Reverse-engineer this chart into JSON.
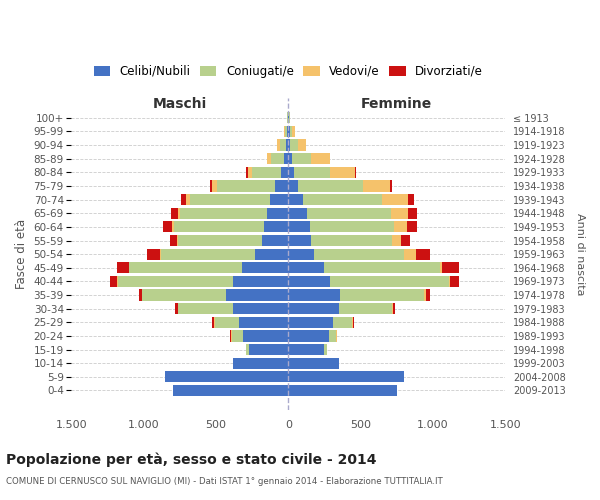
{
  "age_groups": [
    "0-4",
    "5-9",
    "10-14",
    "15-19",
    "20-24",
    "25-29",
    "30-34",
    "35-39",
    "40-44",
    "45-49",
    "50-54",
    "55-59",
    "60-64",
    "65-69",
    "70-74",
    "75-79",
    "80-84",
    "85-89",
    "90-94",
    "95-99",
    "100+"
  ],
  "birth_years": [
    "2009-2013",
    "2004-2008",
    "1999-2003",
    "1994-1998",
    "1989-1993",
    "1984-1988",
    "1979-1983",
    "1974-1978",
    "1969-1973",
    "1964-1968",
    "1959-1963",
    "1954-1958",
    "1949-1953",
    "1944-1948",
    "1939-1943",
    "1934-1938",
    "1929-1933",
    "1924-1928",
    "1919-1923",
    "1914-1918",
    "≤ 1913"
  ],
  "maschi": {
    "celibi": [
      800,
      850,
      380,
      270,
      310,
      340,
      380,
      430,
      380,
      320,
      230,
      180,
      170,
      150,
      130,
      90,
      50,
      30,
      15,
      10,
      5
    ],
    "coniugati": [
      0,
      0,
      0,
      20,
      80,
      170,
      380,
      580,
      800,
      780,
      650,
      580,
      620,
      600,
      550,
      400,
      200,
      90,
      40,
      15,
      5
    ],
    "vedovi": [
      0,
      0,
      0,
      0,
      5,
      5,
      5,
      5,
      5,
      5,
      5,
      10,
      15,
      10,
      30,
      40,
      30,
      30,
      20,
      5,
      2
    ],
    "divorziati": [
      0,
      0,
      0,
      0,
      5,
      10,
      20,
      20,
      50,
      80,
      90,
      50,
      60,
      50,
      30,
      15,
      10,
      0,
      0,
      0,
      0
    ]
  },
  "femmine": {
    "nubili": [
      750,
      800,
      350,
      250,
      280,
      310,
      350,
      360,
      290,
      250,
      180,
      160,
      150,
      130,
      100,
      70,
      40,
      25,
      15,
      10,
      5
    ],
    "coniugate": [
      0,
      0,
      0,
      15,
      50,
      130,
      370,
      580,
      820,
      800,
      620,
      560,
      580,
      580,
      550,
      450,
      250,
      130,
      50,
      15,
      5
    ],
    "vedove": [
      0,
      0,
      0,
      0,
      5,
      5,
      5,
      10,
      10,
      10,
      80,
      60,
      90,
      120,
      180,
      180,
      170,
      130,
      60,
      20,
      5
    ],
    "divorziate": [
      0,
      0,
      0,
      0,
      5,
      10,
      15,
      30,
      60,
      120,
      100,
      60,
      70,
      60,
      40,
      20,
      10,
      0,
      0,
      0,
      0
    ]
  },
  "colors": {
    "celibi_nubili": "#4472c4",
    "coniugati": "#b8d08d",
    "vedovi": "#f5c26b",
    "divorziati": "#cc1111"
  },
  "title": "Popolazione per età, sesso e stato civile - 2014",
  "subtitle": "COMUNE DI CERNUSCO SUL NAVIGLIO (MI) - Dati ISTAT 1° gennaio 2014 - Elaborazione TUTTITALIA.IT",
  "xlim": 1500,
  "xlabel_left": "Maschi",
  "xlabel_right": "Femmine",
  "ylabel": "Fasce di età",
  "ylabel_right": "Anni di nascita",
  "bg_color": "#ffffff",
  "grid_color": "#cccccc",
  "text_color": "#555555",
  "title_color": "#222222"
}
